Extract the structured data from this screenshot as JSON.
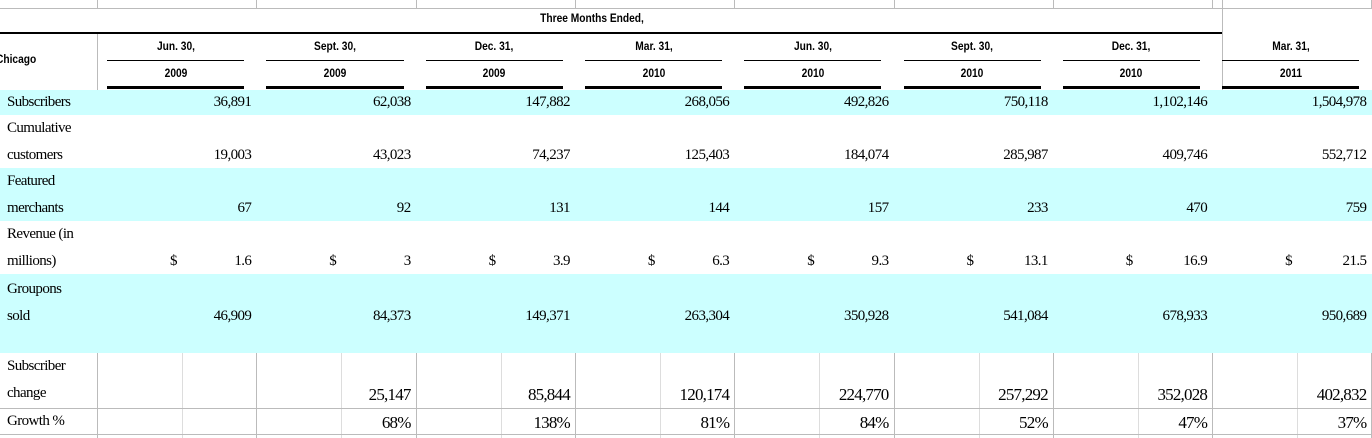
{
  "header": {
    "span_title": "Three Months Ended,",
    "corner": "Chicago"
  },
  "columns": [
    {
      "line1": "Jun. 30,",
      "line2": "2009"
    },
    {
      "line1": "Sept. 30,",
      "line2": "2009"
    },
    {
      "line1": "Dec. 31,",
      "line2": "2009"
    },
    {
      "line1": "Mar. 31,",
      "line2": "2010"
    },
    {
      "line1": "Jun. 30,",
      "line2": "2010"
    },
    {
      "line1": "Sept. 30,",
      "line2": "2010"
    },
    {
      "line1": "Dec. 31,",
      "line2": "2010"
    },
    {
      "line1": "Mar. 31,",
      "line2": "2011"
    }
  ],
  "rows": [
    {
      "label": [
        "Subscribers"
      ],
      "cells": [
        "36,891",
        "62,038",
        "147,882",
        "268,056",
        "492,826",
        "750,118",
        "1,102,146",
        "1,504,978"
      ]
    },
    {
      "label": [
        "Cumulative",
        "customers"
      ],
      "cells": [
        "19,003",
        "43,023",
        "74,237",
        "125,403",
        "184,074",
        "285,987",
        "409,746",
        "552,712"
      ]
    },
    {
      "label": [
        "Featured",
        "merchants"
      ],
      "cells": [
        "67",
        "92",
        "131",
        "144",
        "157",
        "233",
        "470",
        "759"
      ]
    },
    {
      "label": [
        "Revenue (in",
        "millions)"
      ],
      "cells": [
        [
          "$",
          "1.6"
        ],
        [
          "$",
          "3"
        ],
        [
          "$",
          "3.9"
        ],
        [
          "$",
          "6.3"
        ],
        [
          "$",
          "9.3"
        ],
        [
          "$",
          "13.1"
        ],
        [
          "$",
          "16.9"
        ],
        [
          "$",
          "21.5"
        ]
      ]
    },
    {
      "label": [
        "Groupons",
        "sold"
      ],
      "cells": [
        "46,909",
        "84,373",
        "149,371",
        "263,304",
        "350,928",
        "541,084",
        "678,933",
        "950,689"
      ]
    },
    {
      "label": [
        "Subscriber",
        "change"
      ],
      "cells": [
        null,
        "25,147",
        "85,844",
        "120,174",
        "224,770",
        "257,292",
        "352,028",
        "402,832"
      ]
    },
    {
      "label": [
        "Growth %"
      ],
      "cells": [
        null,
        "68%",
        "138%",
        "81%",
        "84%",
        "52%",
        "47%",
        "37%"
      ]
    }
  ]
}
